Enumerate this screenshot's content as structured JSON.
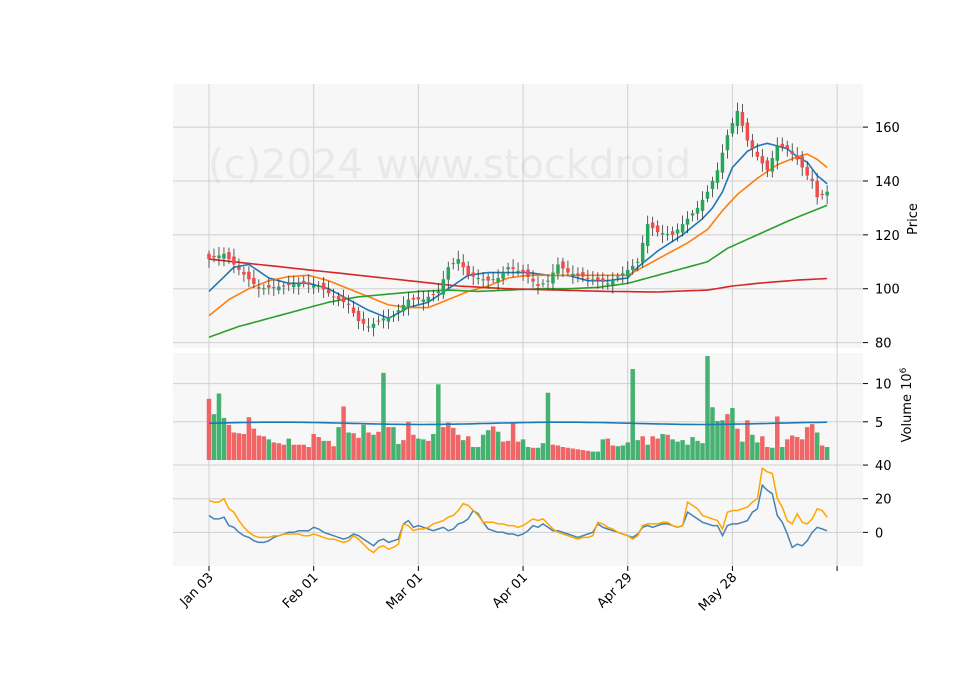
{
  "watermark": "(c)2024 www.stockdroid",
  "chart_data": {
    "type": "candlestick",
    "x_tick_labels": [
      "Jan 03",
      "Feb 01",
      "Mar 01",
      "Apr 01",
      "Apr 29",
      "May 28"
    ],
    "x_tick_index": [
      0,
      21,
      42,
      63,
      84,
      105,
      126
    ],
    "n_bars": 125,
    "price_panel": {
      "ylabel": "Price",
      "ylim": [
        78,
        176
      ],
      "yticks": [
        80,
        100,
        120,
        140,
        160
      ],
      "keypoints": [
        [
          0,
          111
        ],
        [
          3,
          113
        ],
        [
          6,
          107
        ],
        [
          10,
          100
        ],
        [
          15,
          101
        ],
        [
          18,
          102
        ],
        [
          22,
          101
        ],
        [
          25,
          97
        ],
        [
          28,
          94
        ],
        [
          30,
          88
        ],
        [
          32,
          86
        ],
        [
          35,
          89
        ],
        [
          37,
          90
        ],
        [
          40,
          96
        ],
        [
          43,
          96
        ],
        [
          46,
          99
        ],
        [
          48,
          108
        ],
        [
          50,
          111
        ],
        [
          52,
          105
        ],
        [
          56,
          103
        ],
        [
          58,
          104
        ],
        [
          60,
          108
        ],
        [
          63,
          106
        ],
        [
          66,
          101
        ],
        [
          68,
          103
        ],
        [
          70,
          109
        ],
        [
          72,
          106
        ],
        [
          76,
          104
        ],
        [
          80,
          102
        ],
        [
          84,
          107
        ],
        [
          86,
          110
        ],
        [
          88,
          124
        ],
        [
          90,
          121
        ],
        [
          93,
          120
        ],
        [
          96,
          126
        ],
        [
          98,
          130
        ],
        [
          100,
          136
        ],
        [
          102,
          144
        ],
        [
          104,
          157
        ],
        [
          106,
          166
        ],
        [
          108,
          155
        ],
        [
          110,
          149
        ],
        [
          112,
          144
        ],
        [
          114,
          153
        ],
        [
          116,
          152
        ],
        [
          118,
          148
        ],
        [
          120,
          142
        ],
        [
          121,
          140
        ],
        [
          122,
          134
        ],
        [
          124,
          136
        ]
      ],
      "moving_averages": [
        {
          "color": "#1f77b4",
          "keypoints": [
            [
              0,
              99
            ],
            [
              5,
              108
            ],
            [
              8,
              109
            ],
            [
              12,
              104
            ],
            [
              16,
              102
            ],
            [
              20,
              102
            ],
            [
              24,
              100
            ],
            [
              28,
              96
            ],
            [
              32,
              92
            ],
            [
              36,
              89
            ],
            [
              40,
              93
            ],
            [
              44,
              95
            ],
            [
              48,
              100
            ],
            [
              52,
              105
            ],
            [
              56,
              106
            ],
            [
              60,
              106
            ],
            [
              64,
              106
            ],
            [
              68,
              105
            ],
            [
              72,
              105
            ],
            [
              76,
              103
            ],
            [
              80,
              103
            ],
            [
              84,
              104
            ],
            [
              86,
              108
            ],
            [
              90,
              114
            ],
            [
              95,
              120
            ],
            [
              99,
              126
            ],
            [
              101,
              130
            ],
            [
              103,
              136
            ],
            [
              105,
              145
            ],
            [
              108,
              151
            ],
            [
              110,
              153
            ],
            [
              112,
              154
            ],
            [
              114,
              153
            ],
            [
              116,
              152
            ],
            [
              118,
              149
            ],
            [
              120,
              147
            ],
            [
              122,
              142
            ],
            [
              124,
              139
            ]
          ]
        },
        {
          "color": "#ff7f0e",
          "keypoints": [
            [
              0,
              90
            ],
            [
              4,
              96
            ],
            [
              8,
              100
            ],
            [
              12,
              103
            ],
            [
              16,
              104.5
            ],
            [
              20,
              105
            ],
            [
              24,
              103
            ],
            [
              28,
              100
            ],
            [
              32,
              97
            ],
            [
              36,
              94
            ],
            [
              40,
              93
            ],
            [
              44,
              93
            ],
            [
              48,
              96
            ],
            [
              52,
              99
            ],
            [
              56,
              101
            ],
            [
              60,
              104
            ],
            [
              64,
              105
            ],
            [
              68,
              105
            ],
            [
              72,
              105
            ],
            [
              76,
              105
            ],
            [
              80,
              105
            ],
            [
              84,
              105
            ],
            [
              88,
              109
            ],
            [
              92,
              113
            ],
            [
              96,
              117
            ],
            [
              100,
              122
            ],
            [
              103,
              129
            ],
            [
              106,
              135
            ],
            [
              110,
              141
            ],
            [
              114,
              146
            ],
            [
              118,
              149
            ],
            [
              120,
              150
            ],
            [
              122,
              148
            ],
            [
              124,
              145
            ]
          ]
        },
        {
          "color": "#2ca02c",
          "keypoints": [
            [
              0,
              82
            ],
            [
              6,
              86
            ],
            [
              12,
              89
            ],
            [
              18,
              92
            ],
            [
              24,
              95
            ],
            [
              30,
              97
            ],
            [
              36,
              98
            ],
            [
              42,
              99
            ],
            [
              48,
              99.5
            ],
            [
              54,
              99
            ],
            [
              60,
              99.5
            ],
            [
              66,
              100
            ],
            [
              72,
              100
            ],
            [
              78,
              100.5
            ],
            [
              84,
              102
            ],
            [
              88,
              104
            ],
            [
              94,
              107
            ],
            [
              100,
              110
            ],
            [
              104,
              115
            ],
            [
              110,
              120
            ],
            [
              116,
              125
            ],
            [
              120,
              128
            ],
            [
              124,
              131
            ]
          ]
        },
        {
          "color": "#d62728",
          "keypoints": [
            [
              0,
              111
            ],
            [
              10,
              109
            ],
            [
              20,
              107
            ],
            [
              30,
              105
            ],
            [
              40,
              103
            ],
            [
              50,
              101
            ],
            [
              60,
              100
            ],
            [
              70,
              99.5
            ],
            [
              80,
              99
            ],
            [
              90,
              98.8
            ],
            [
              100,
              99.5
            ],
            [
              105,
              101
            ],
            [
              110,
              102
            ],
            [
              118,
              103.2
            ],
            [
              124,
              103.8
            ]
          ]
        }
      ]
    },
    "volume_panel": {
      "ylabel": "Volume  10",
      "ylabel_exponent": "6",
      "ylim": [
        0,
        14
      ],
      "yticks": [
        5,
        10
      ],
      "average_color": "#1f77b4",
      "average_level": 4.8,
      "values": [
        8.0,
        6.0,
        8.7,
        5.5,
        4.6,
        3.6,
        3.5,
        3.4,
        5.6,
        4.1,
        3.2,
        3.1,
        2.7,
        2.3,
        2.2,
        2.0,
        2.8,
        2.0,
        2.0,
        2.0,
        1.7,
        3.4,
        3.0,
        2.5,
        2.5,
        1.8,
        4.3,
        7.0,
        3.6,
        3.5,
        2.9,
        4.6,
        3.6,
        3.3,
        3.7,
        11.4,
        4.3,
        4.3,
        2.1,
        2.6,
        5.0,
        3.3,
        2.8,
        2.7,
        2.5,
        3.4,
        9.9,
        4.3,
        4.9,
        4.2,
        3.3,
        2.6,
        3.1,
        1.7,
        1.7,
        3.3,
        3.9,
        4.4,
        3.7,
        2.4,
        2.5,
        4.9,
        2.4,
        2.7,
        1.7,
        1.6,
        1.6,
        2.2,
        8.8,
        2.0,
        1.9,
        1.7,
        1.6,
        1.5,
        1.4,
        1.3,
        1.2,
        1.1,
        1.1,
        2.7,
        2.8,
        1.9,
        1.8,
        1.9,
        2.3,
        11.9,
        2.6,
        3.1,
        2.0,
        3.1,
        2.8,
        3.4,
        3.3,
        2.7,
        2.4,
        2.6,
        2.0,
        3.0,
        2.5,
        2.2,
        13.6,
        6.9,
        5.1,
        5.2,
        6.0,
        6.8,
        4.1,
        2.4,
        5.2,
        3.3,
        2.3,
        3.1,
        1.7,
        1.6,
        5.7,
        1.7,
        2.7,
        3.2,
        3.0,
        2.7,
        4.3,
        4.7,
        3.6,
        1.9,
        1.7
      ],
      "directions": [
        "down",
        "up",
        "up",
        "up",
        "down",
        "down",
        "down",
        "down",
        "down",
        "down",
        "down",
        "down",
        "up",
        "down",
        "down",
        "down",
        "up",
        "down",
        "down",
        "down",
        "down",
        "down",
        "down",
        "up",
        "down",
        "down",
        "up",
        "down",
        "up",
        "down",
        "down",
        "up",
        "down",
        "up",
        "down",
        "up",
        "down",
        "up",
        "up",
        "down",
        "down",
        "down",
        "up",
        "up",
        "down",
        "up",
        "up",
        "down",
        "down",
        "down",
        "down",
        "up",
        "down",
        "up",
        "up",
        "up",
        "up",
        "down",
        "up",
        "down",
        "down",
        "down",
        "down",
        "up",
        "up",
        "down",
        "up",
        "up",
        "up",
        "down",
        "down",
        "down",
        "down",
        "down",
        "down",
        "down",
        "down",
        "up",
        "up",
        "up",
        "down",
        "down",
        "up",
        "up",
        "up",
        "up",
        "up",
        "down",
        "up",
        "down",
        "down",
        "up",
        "down",
        "up",
        "up",
        "up",
        "up",
        "up",
        "up",
        "up",
        "up",
        "up",
        "up",
        "up",
        "down",
        "up",
        "down",
        "up",
        "down",
        "up",
        "up",
        "down",
        "down",
        "up",
        "down",
        "up",
        "down",
        "down",
        "down",
        "down",
        "down",
        "down",
        "up",
        "down",
        "up"
      ]
    },
    "oscillator_panel": {
      "ylim": [
        -20,
        43
      ],
      "yticks": [
        0,
        20,
        40
      ],
      "series": [
        {
          "color": "#4682b4",
          "values": [
            10,
            8,
            8,
            9,
            4,
            3,
            0,
            -2,
            -3,
            -5,
            -6,
            -6,
            -5,
            -3,
            -2,
            -1,
            0,
            0,
            1,
            1,
            1,
            3,
            2,
            0,
            -1,
            -2,
            -3,
            -4,
            -3,
            -1,
            -2,
            -4,
            -6,
            -8,
            -5,
            -4,
            -6,
            -5,
            -4,
            5,
            7,
            3,
            4,
            3,
            2,
            1,
            2,
            3,
            1,
            2,
            5,
            6,
            8,
            13,
            11,
            6,
            2,
            1,
            0,
            0,
            -1,
            -1,
            -2,
            -1,
            1,
            4,
            3,
            5,
            3,
            1,
            1,
            0,
            -1,
            -2,
            -3,
            -2,
            -1,
            0,
            5,
            3,
            2,
            1,
            0,
            -1,
            -2,
            -3,
            -1,
            3,
            4,
            3,
            4,
            5,
            5,
            4,
            3,
            4,
            12,
            10,
            8,
            6,
            5,
            4,
            4,
            -2,
            4,
            5,
            5,
            6,
            7,
            12,
            14,
            28,
            25,
            23,
            10,
            6,
            -1,
            -9,
            -7,
            -8,
            -5,
            0,
            3,
            2,
            1
          ]
        },
        {
          "color": "#ffa500",
          "values": [
            19,
            18,
            18,
            20,
            14,
            12,
            7,
            3,
            0,
            -2,
            -3,
            -3,
            -3,
            -2,
            -2,
            -1,
            -1,
            -1,
            -1,
            -2,
            -2,
            -1,
            -2,
            -3,
            -4,
            -4,
            -5,
            -6,
            -5,
            -2,
            -4,
            -7,
            -10,
            -12,
            -9,
            -8,
            -10,
            -9,
            -7,
            5,
            4,
            1,
            2,
            2,
            3,
            5,
            6,
            7,
            9,
            10,
            13,
            17,
            16,
            13,
            10,
            6,
            6,
            6,
            5,
            5,
            4,
            4,
            3,
            4,
            6,
            8,
            7,
            8,
            5,
            2,
            0,
            -1,
            -2,
            -3,
            -4,
            -3,
            -3,
            -2,
            6,
            5,
            3,
            2,
            0,
            -1,
            -2,
            -4,
            -2,
            4,
            5,
            5,
            5,
            6,
            6,
            4,
            3,
            4,
            18,
            16,
            14,
            10,
            9,
            8,
            7,
            2,
            12,
            13,
            13,
            14,
            15,
            18,
            20,
            38,
            36,
            35,
            20,
            15,
            7,
            5,
            11,
            6,
            5,
            8,
            14,
            13,
            9
          ]
        }
      ]
    },
    "colors": {
      "up": "#26a65b",
      "down": "#ef4c4c",
      "grid": "#d0d0d0",
      "panel_bg": "#f7f7f7"
    }
  }
}
